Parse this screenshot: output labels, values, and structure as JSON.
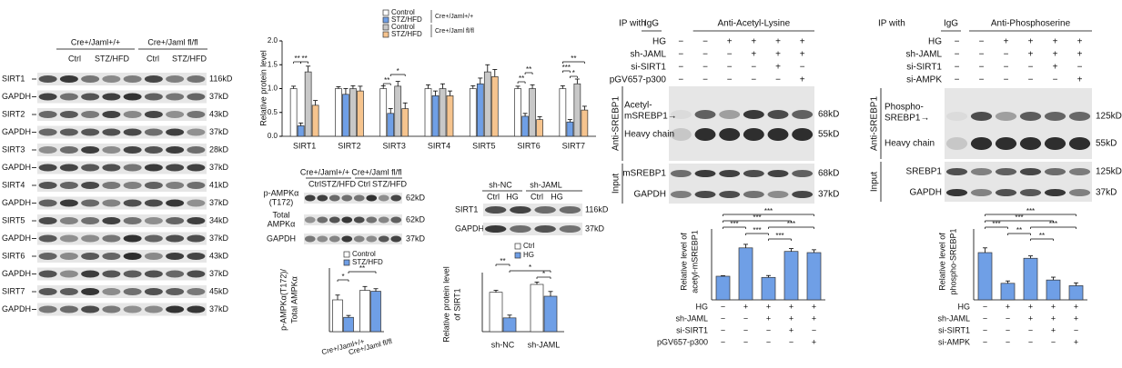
{
  "blots": [
    {
      "groups": [
        "Cre+/Jaml+/+",
        "Cre+/Jaml fl/fl"
      ],
      "conditions": [
        "Ctrl",
        "STZ/HFD",
        "Ctrl",
        "STZ/HFD"
      ],
      "rows": [
        {
          "label": "SIRT1",
          "size": "116kD"
        },
        {
          "label": "GAPDH",
          "size": "37kD"
        },
        {
          "label": "SIRT2",
          "size": "43kD"
        },
        {
          "label": "GAPDH",
          "size": "37kD"
        },
        {
          "label": "SIRT3",
          "size": "28kD"
        },
        {
          "label": "GAPDH",
          "size": "37kD"
        },
        {
          "label": "SIRT4",
          "size": "41kD"
        },
        {
          "label": "GAPDH",
          "size": "37kD"
        },
        {
          "label": "SIRT5",
          "size": "34kD"
        },
        {
          "label": "GAPDH",
          "size": "37kD"
        },
        {
          "label": "SIRT6",
          "size": "43kD"
        },
        {
          "label": "GAPDH",
          "size": "37kD"
        },
        {
          "label": "SIRT7",
          "size": "45kD"
        },
        {
          "label": "GAPDH",
          "size": "37kD"
        }
      ]
    },
    {
      "groups": [
        "Cre+/Jaml+/+",
        "Cre+/Jaml fl/fl"
      ],
      "conditions": [
        "Ctrl",
        "STZ/HFD",
        "Ctrl",
        "STZ/HFD"
      ],
      "rows": [
        {
          "label": [
            "p-AMPKα",
            "(T172)"
          ],
          "size": "62kD"
        },
        {
          "label": [
            "Total",
            "AMPKα"
          ],
          "size": "62kD"
        },
        {
          "label": [
            "GAPDH"
          ],
          "size": "37kD"
        }
      ]
    },
    {
      "groups": [
        "sh-NC",
        "sh-JAML"
      ],
      "conditions": [
        "Ctrl",
        "HG",
        "Ctrl",
        "HG"
      ],
      "rows": [
        {
          "label": "SIRT1",
          "size": "116kD"
        },
        {
          "label": "GAPDH",
          "size": "37kD"
        }
      ]
    },
    {
      "ip_with": "IP with",
      "lane_groups": [
        "IgG",
        "Anti-Acetyl-Lysine"
      ],
      "treatments": [
        {
          "label": "HG",
          "signs": [
            "−",
            "−",
            "+",
            "+",
            "+",
            "+"
          ]
        },
        {
          "label": "sh-JAML",
          "signs": [
            "−",
            "−",
            "−",
            "+",
            "+",
            "+"
          ]
        },
        {
          "label": "si-SIRT1",
          "signs": [
            "−",
            "−",
            "−",
            "−",
            "+",
            "−"
          ]
        },
        {
          "label": "pGV657-p300",
          "signs": [
            "−",
            "−",
            "−",
            "−",
            "−",
            "+"
          ]
        }
      ],
      "ip_side": "Anti-SREBP1",
      "ip_rows": [
        {
          "label": [
            "Acetyl-",
            "mSREBP1→"
          ],
          "size": "68kD"
        },
        {
          "label": [
            "Heavy chain"
          ],
          "size": "55kD"
        }
      ],
      "input_side": "Input",
      "input_rows": [
        {
          "label": [
            "mSREBP1"
          ],
          "size": "68kD"
        },
        {
          "label": [
            "GAPDH"
          ],
          "size": "37kD"
        }
      ]
    },
    {
      "ip_with": "IP with",
      "lane_groups": [
        "IgG",
        "Anti-Phosphoserine"
      ],
      "treatments": [
        {
          "label": "HG",
          "signs": [
            "−",
            "−",
            "+",
            "+",
            "+",
            "+"
          ]
        },
        {
          "label": "sh-JAML",
          "signs": [
            "−",
            "−",
            "−",
            "+",
            "+",
            "+"
          ]
        },
        {
          "label": "si-SIRT1",
          "signs": [
            "−",
            "−",
            "−",
            "−",
            "+",
            "−"
          ]
        },
        {
          "label": "si-AMPK",
          "signs": [
            "−",
            "−",
            "−",
            "−",
            "−",
            "+"
          ]
        }
      ],
      "ip_side": "Anti-SREBP1",
      "ip_rows": [
        {
          "label": [
            "Phospho-",
            "SREBP1→"
          ],
          "size": "125kD"
        },
        {
          "label": [
            "Heavy chain"
          ],
          "size": "55kD"
        }
      ],
      "input_side": "Input",
      "input_rows": [
        {
          "label": [
            "SREBP1"
          ],
          "size": "125kD"
        },
        {
          "label": [
            "GAPDH"
          ],
          "size": "37kD"
        }
      ]
    }
  ],
  "chart_data": [
    {
      "type": "bar",
      "y_label": "Relative protein level",
      "categories": [
        "SIRT1",
        "SIRT2",
        "SIRT3",
        "SIRT4",
        "SIRT5",
        "SIRT6",
        "SIRT7"
      ],
      "series": [
        {
          "name": "Control",
          "color": "#ffffff",
          "values": [
            1.0,
            1.0,
            1.0,
            1.0,
            1.0,
            1.0,
            1.0
          ],
          "errors": [
            0.05,
            0.04,
            0.06,
            0.08,
            0.06,
            0.05,
            0.06
          ]
        },
        {
          "name": "STZ/HFD",
          "color": "#6f9fe6",
          "values": [
            0.22,
            0.88,
            0.48,
            0.85,
            1.1,
            0.42,
            0.3
          ],
          "errors": [
            0.06,
            0.12,
            0.1,
            0.1,
            0.12,
            0.06,
            0.05
          ]
        },
        {
          "name": "Control",
          "color": "#c8c8c8",
          "values": [
            1.35,
            1.0,
            1.05,
            1.0,
            1.35,
            1.0,
            1.1
          ],
          "errors": [
            0.12,
            0.06,
            0.1,
            0.1,
            0.15,
            0.08,
            0.1
          ]
        },
        {
          "name": "STZ/HFD",
          "color": "#f6c48e",
          "values": [
            0.65,
            0.95,
            0.58,
            0.85,
            1.25,
            0.35,
            0.55
          ],
          "errors": [
            0.1,
            0.1,
            0.12,
            0.1,
            0.15,
            0.06,
            0.08
          ]
        }
      ],
      "legend_groups": [
        "Cre+/Jaml+/+",
        "Cre+/Jaml fl/fl"
      ],
      "ylim": [
        0,
        2
      ],
      "yticks": [
        {
          "value": 0,
          "label": "0.0"
        },
        {
          "value": 0.5,
          "label": "0.5"
        },
        {
          "value": 1,
          "label": "1.0"
        },
        {
          "value": 1.5,
          "label": "1.5"
        },
        {
          "value": 2,
          "label": "2.0"
        }
      ],
      "significance": [
        "**",
        "**",
        "**",
        "*",
        "**",
        "**",
        "***",
        "*",
        "**"
      ]
    },
    {
      "type": "bar",
      "y_label": [
        "p-AMPKα(T172)/",
        "Total AMPKα"
      ],
      "categories": [
        "Cre+/Jaml+/+",
        "Cre+/Jaml fl/fl"
      ],
      "series": [
        {
          "name": "Control",
          "color": "#ffffff",
          "values": [
            1.0,
            1.3
          ],
          "errors": [
            0.15,
            0.12
          ]
        },
        {
          "name": "STZ/HFD",
          "color": "#6f9fe6",
          "values": [
            0.45,
            1.27
          ],
          "errors": [
            0.06,
            0.08
          ]
        }
      ],
      "ylim": [
        0,
        2
      ],
      "significance": [
        "*",
        "**"
      ]
    },
    {
      "type": "bar",
      "y_label": [
        "Relative protein level",
        "of SIRT1"
      ],
      "categories": [
        "sh-NC",
        "sh-JAML"
      ],
      "series": [
        {
          "name": "Ctrl",
          "color": "#ffffff",
          "values": [
            1.0,
            1.2
          ],
          "errors": [
            0.05,
            0.06
          ]
        },
        {
          "name": "HG",
          "color": "#6f9fe6",
          "values": [
            0.35,
            0.9
          ],
          "errors": [
            0.07,
            0.12
          ]
        }
      ],
      "ylim": [
        0,
        1.5
      ],
      "significance": [
        "**",
        "*",
        "*"
      ]
    },
    {
      "type": "bar",
      "y_label": [
        "Relative level of",
        "acetyl-mSREBP1"
      ],
      "color": "#6f9fe6",
      "values": [
        1.0,
        2.2,
        0.95,
        2.05,
        2.0
      ],
      "errors": [
        0.02,
        0.15,
        0.08,
        0.12,
        0.12
      ],
      "treatments": [
        {
          "label": "HG",
          "signs": [
            "−",
            "+",
            "+",
            "+",
            "+"
          ]
        },
        {
          "label": "sh-JAML",
          "signs": [
            "−",
            "−",
            "+",
            "+",
            "+"
          ]
        },
        {
          "label": "si-SIRT1",
          "signs": [
            "−",
            "−",
            "−",
            "+",
            "−"
          ]
        },
        {
          "label": "pGV657-p300",
          "signs": [
            "−",
            "−",
            "−",
            "−",
            "+"
          ]
        }
      ],
      "ylim": [
        0,
        3
      ],
      "significance": [
        "***",
        "***",
        "***",
        "***",
        "***",
        "***"
      ]
    },
    {
      "type": "bar",
      "y_label": [
        "Relative level of",
        "phospho-SREBP1"
      ],
      "color": "#6f9fe6",
      "values": [
        1.0,
        0.35,
        0.88,
        0.42,
        0.3
      ],
      "errors": [
        0.1,
        0.05,
        0.05,
        0.06,
        0.06
      ],
      "treatments": [
        {
          "label": "HG",
          "signs": [
            "−",
            "+",
            "+",
            "+",
            "+"
          ]
        },
        {
          "label": "sh-JAML",
          "signs": [
            "−",
            "−",
            "+",
            "+",
            "+"
          ]
        },
        {
          "label": "si-SIRT1",
          "signs": [
            "−",
            "−",
            "−",
            "+",
            "−"
          ]
        },
        {
          "label": "si-AMPK",
          "signs": [
            "−",
            "−",
            "−",
            "−",
            "+"
          ]
        }
      ],
      "ylim": [
        0,
        1.5
      ],
      "significance": [
        "***",
        "***",
        "***",
        "**",
        "***",
        "**"
      ]
    }
  ]
}
